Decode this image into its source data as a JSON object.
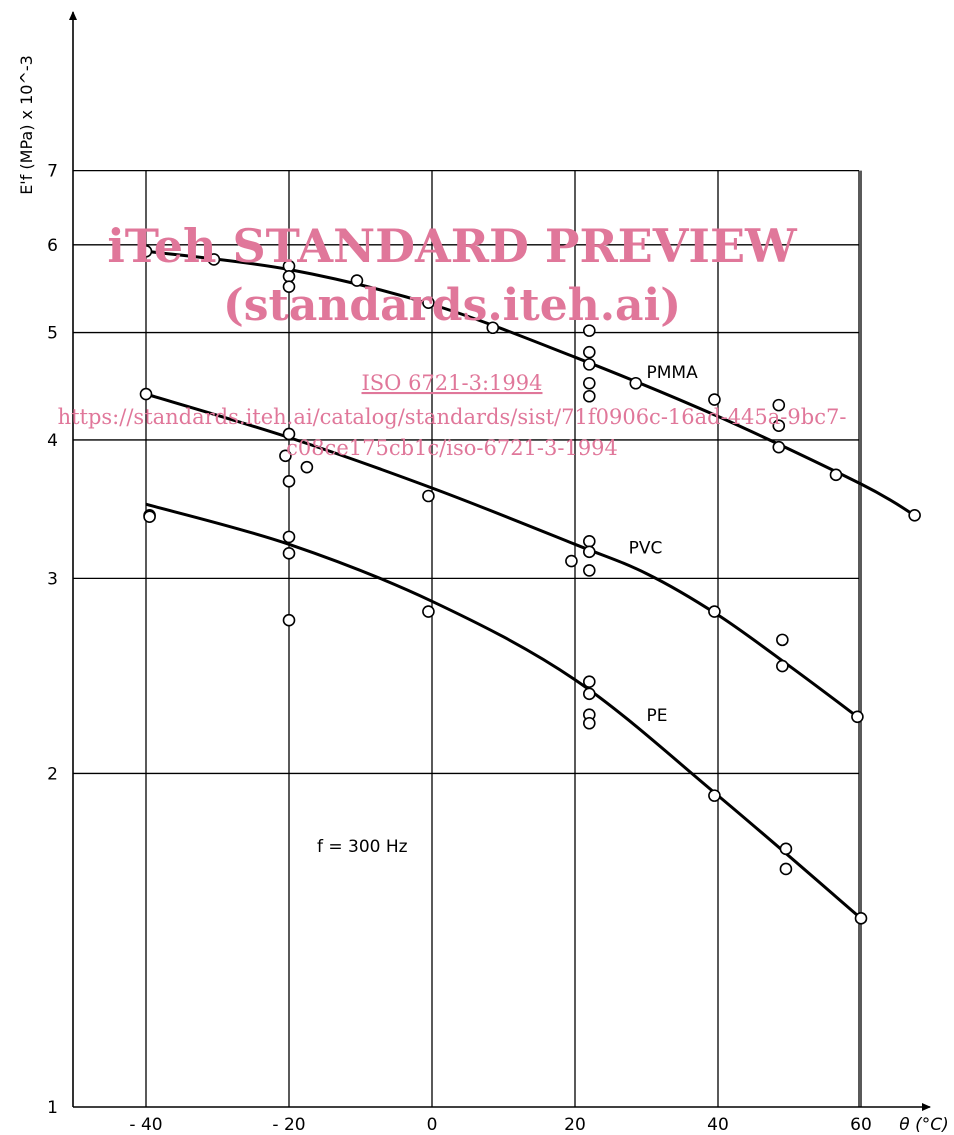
{
  "chart_data": {
    "type": "scatter",
    "ylabel": "E'f (MPa) x 10^-3",
    "xlabel": "θ (°C)",
    "x_ticks": [
      -40,
      -20,
      0,
      20,
      40,
      60
    ],
    "x_tick_labels": [
      "- 40",
      "- 20",
      "0",
      "20",
      "40",
      "60"
    ],
    "y_ticks": [
      1,
      2,
      3,
      4,
      5,
      6,
      7
    ],
    "y_scale": "log",
    "xlim": [
      -50,
      68
    ],
    "ylim": [
      1,
      7
    ],
    "grid": true,
    "annotation": "f = 300 Hz",
    "series": [
      {
        "name": "PMMA",
        "label_at": [
          30,
          4.55
        ],
        "points": [
          [
            -40,
            5.92
          ],
          [
            -30.5,
            5.82
          ],
          [
            -20,
            5.74
          ],
          [
            -20,
            5.62
          ],
          [
            -20,
            5.5
          ],
          [
            -10.5,
            5.57
          ],
          [
            -0.5,
            5.32
          ],
          [
            8.5,
            5.05
          ],
          [
            22,
            5.02
          ],
          [
            22,
            4.8
          ],
          [
            22,
            4.68
          ],
          [
            22,
            4.5
          ],
          [
            22,
            4.38
          ],
          [
            28.5,
            4.5
          ],
          [
            39.5,
            4.35
          ],
          [
            48.5,
            4.3
          ],
          [
            48.5,
            4.12
          ],
          [
            48.5,
            3.94
          ],
          [
            56.5,
            3.72
          ],
          [
            67.5,
            3.42
          ]
        ],
        "curve": [
          [
            -40,
            5.92
          ],
          [
            -20,
            5.7
          ],
          [
            0,
            5.3
          ],
          [
            20,
            4.75
          ],
          [
            40,
            4.2
          ],
          [
            60,
            3.65
          ],
          [
            67.5,
            3.42
          ]
        ]
      },
      {
        "name": "PVC",
        "label_at": [
          27.5,
          3.16
        ],
        "points": [
          [
            -40,
            4.4
          ],
          [
            -39.5,
            3.42
          ],
          [
            -20,
            4.05
          ],
          [
            -20.5,
            3.87
          ],
          [
            -17.5,
            3.78
          ],
          [
            -20,
            3.67
          ],
          [
            -0.5,
            3.56
          ],
          [
            19.5,
            3.11
          ],
          [
            22,
            3.24
          ],
          [
            22,
            3.17
          ],
          [
            22,
            3.05
          ],
          [
            39.5,
            2.8
          ],
          [
            49,
            2.64
          ],
          [
            49,
            2.5
          ],
          [
            59.5,
            2.25
          ]
        ],
        "curve": [
          [
            -40,
            4.4
          ],
          [
            -20,
            4.02
          ],
          [
            0,
            3.62
          ],
          [
            20,
            3.22
          ],
          [
            30,
            3.03
          ],
          [
            40,
            2.78
          ],
          [
            50,
            2.5
          ],
          [
            59.5,
            2.25
          ]
        ]
      },
      {
        "name": "PE",
        "label_at": [
          30,
          2.23
        ],
        "points": [
          [
            -39.5,
            3.41
          ],
          [
            -20,
            3.27
          ],
          [
            -20,
            3.16
          ],
          [
            -20,
            2.75
          ],
          [
            -0.5,
            2.8
          ],
          [
            22,
            2.42
          ],
          [
            22,
            2.36
          ],
          [
            22,
            2.26
          ],
          [
            22,
            2.22
          ],
          [
            39.5,
            1.91
          ],
          [
            49.5,
            1.71
          ],
          [
            49.5,
            1.64
          ],
          [
            60,
            1.48
          ]
        ],
        "curve": [
          [
            -40,
            3.5
          ],
          [
            -20,
            3.22
          ],
          [
            0,
            2.86
          ],
          [
            20,
            2.43
          ],
          [
            40,
            1.91
          ],
          [
            60,
            1.48
          ]
        ]
      }
    ]
  },
  "watermark": {
    "line1": "iTeh STANDARD PREVIEW",
    "line2": "(standards.iteh.ai)",
    "line3": "ISO 6721-3:1994",
    "line4": "https://standards.iteh.ai/catalog/standards/sist/71f0906c-16ad-445a-9bc7-",
    "line5": "c08ce175cb1c/iso-6721-3-1994"
  }
}
